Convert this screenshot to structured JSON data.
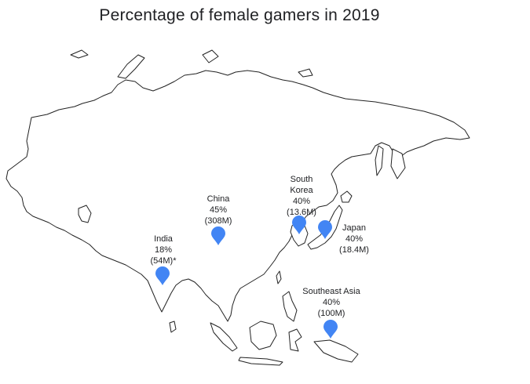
{
  "title": "Percentage of female gamers in 2019",
  "colors": {
    "pin": "#4285F4",
    "land_stroke": "#222222",
    "land_fill": "#ffffff"
  },
  "markers": [
    {
      "id": "india",
      "icon": "map-pin-icon",
      "name": "India",
      "percent": "18%",
      "count": "(54M)*"
    },
    {
      "id": "china",
      "icon": "map-pin-icon",
      "name": "China",
      "percent": "45%",
      "count": "(308M)"
    },
    {
      "id": "south-korea",
      "icon": "map-pin-icon",
      "name_line1": "South",
      "name_line2": "Korea",
      "percent": "40%",
      "count": "(13.6M)"
    },
    {
      "id": "japan",
      "icon": "map-pin-icon",
      "name": "Japan",
      "percent": "40%",
      "count": "(18.4M)"
    },
    {
      "id": "southeast-asia",
      "icon": "map-pin-icon",
      "name": "Southeast Asia",
      "percent": "40%",
      "count": "(100M)"
    }
  ]
}
